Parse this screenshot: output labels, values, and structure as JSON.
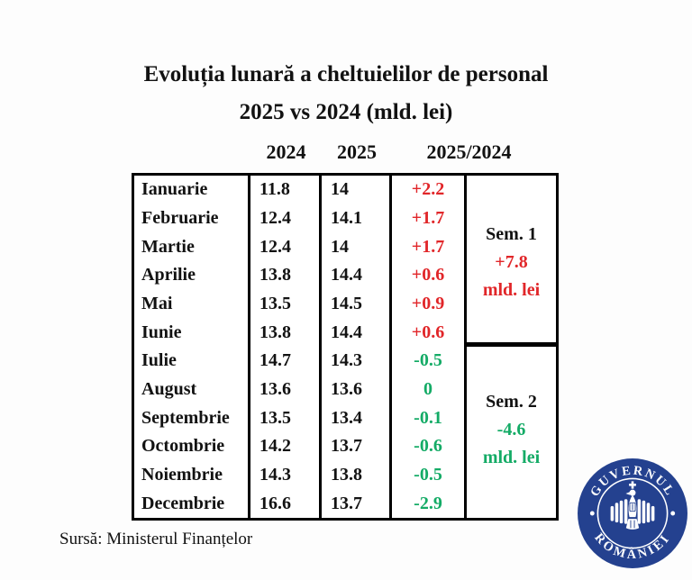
{
  "title": {
    "line1": "Evoluția lunară a cheltuielilor de personal",
    "line2": "2025 vs 2024 (mld. lei)"
  },
  "table": {
    "col_headers": [
      "2024",
      "2025",
      "2025/2024"
    ],
    "rows": [
      {
        "month": "Ianuarie",
        "y2024": "11.8",
        "y2025": "14",
        "diff": "+2.2"
      },
      {
        "month": "Februarie",
        "y2024": "12.4",
        "y2025": "14.1",
        "diff": "+1.7"
      },
      {
        "month": "Martie",
        "y2024": "12.4",
        "y2025": "14",
        "diff": "+1.7"
      },
      {
        "month": "Aprilie",
        "y2024": "13.8",
        "y2025": "14.4",
        "diff": "+0.6"
      },
      {
        "month": "Mai",
        "y2024": "13.5",
        "y2025": "14.5",
        "diff": "+0.9"
      },
      {
        "month": "Iunie",
        "y2024": "13.8",
        "y2025": "14.4",
        "diff": "+0.6"
      },
      {
        "month": "Iulie",
        "y2024": "14.7",
        "y2025": "14.3",
        "diff": "-0.5"
      },
      {
        "month": "August",
        "y2024": "13.6",
        "y2025": "13.6",
        "diff": "0"
      },
      {
        "month": "Septembrie",
        "y2024": "13.5",
        "y2025": "13.4",
        "diff": "-0.1"
      },
      {
        "month": "Octombrie",
        "y2024": "14.2",
        "y2025": "13.7",
        "diff": "-0.6"
      },
      {
        "month": "Noiembrie",
        "y2024": "14.3",
        "y2025": "13.8",
        "diff": "-0.5"
      },
      {
        "month": "Decembrie",
        "y2024": "16.6",
        "y2025": "13.7",
        "diff": "-2.9"
      }
    ],
    "sem1": {
      "label": "Sem. 1",
      "value": "+7.8",
      "unit": "mld. lei",
      "trend": "positive"
    },
    "sem2": {
      "label": "Sem. 2",
      "value": "-4.6",
      "unit": "mld. lei",
      "trend": "negative"
    }
  },
  "source": "Sursă: Ministerul Finanțelor",
  "logo": {
    "top_text": "GUVERNUL",
    "bottom_text": "ROMÂNIEI"
  },
  "colors": {
    "positive_red": "#e12629",
    "negative_green": "#14ab66",
    "logo_blue": "#24418f",
    "text_black": "#121212"
  },
  "chart_data": {
    "type": "table",
    "title": "Evoluția lunară a cheltuielilor de personal 2025 vs 2024 (mld. lei)",
    "categories": [
      "Ianuarie",
      "Februarie",
      "Martie",
      "Aprilie",
      "Mai",
      "Iunie",
      "Iulie",
      "August",
      "Septembrie",
      "Octombrie",
      "Noiembrie",
      "Decembrie"
    ],
    "series": [
      {
        "name": "2024",
        "values": [
          11.8,
          12.4,
          12.4,
          13.8,
          13.5,
          13.8,
          14.7,
          13.6,
          13.5,
          14.2,
          14.3,
          16.6
        ]
      },
      {
        "name": "2025",
        "values": [
          14,
          14.1,
          14,
          14.4,
          14.5,
          14.4,
          14.3,
          13.6,
          13.4,
          13.7,
          13.8,
          13.7
        ]
      },
      {
        "name": "2025/2024",
        "values": [
          2.2,
          1.7,
          1.7,
          0.6,
          0.9,
          0.6,
          -0.5,
          0,
          -0.1,
          -0.6,
          -0.5,
          -2.9
        ]
      }
    ],
    "summaries": [
      {
        "name": "Sem. 1",
        "value": 7.8,
        "unit": "mld. lei"
      },
      {
        "name": "Sem. 2",
        "value": -4.6,
        "unit": "mld. lei"
      }
    ],
    "unit": "mld. lei",
    "source": "Ministerul Finanțelor"
  }
}
